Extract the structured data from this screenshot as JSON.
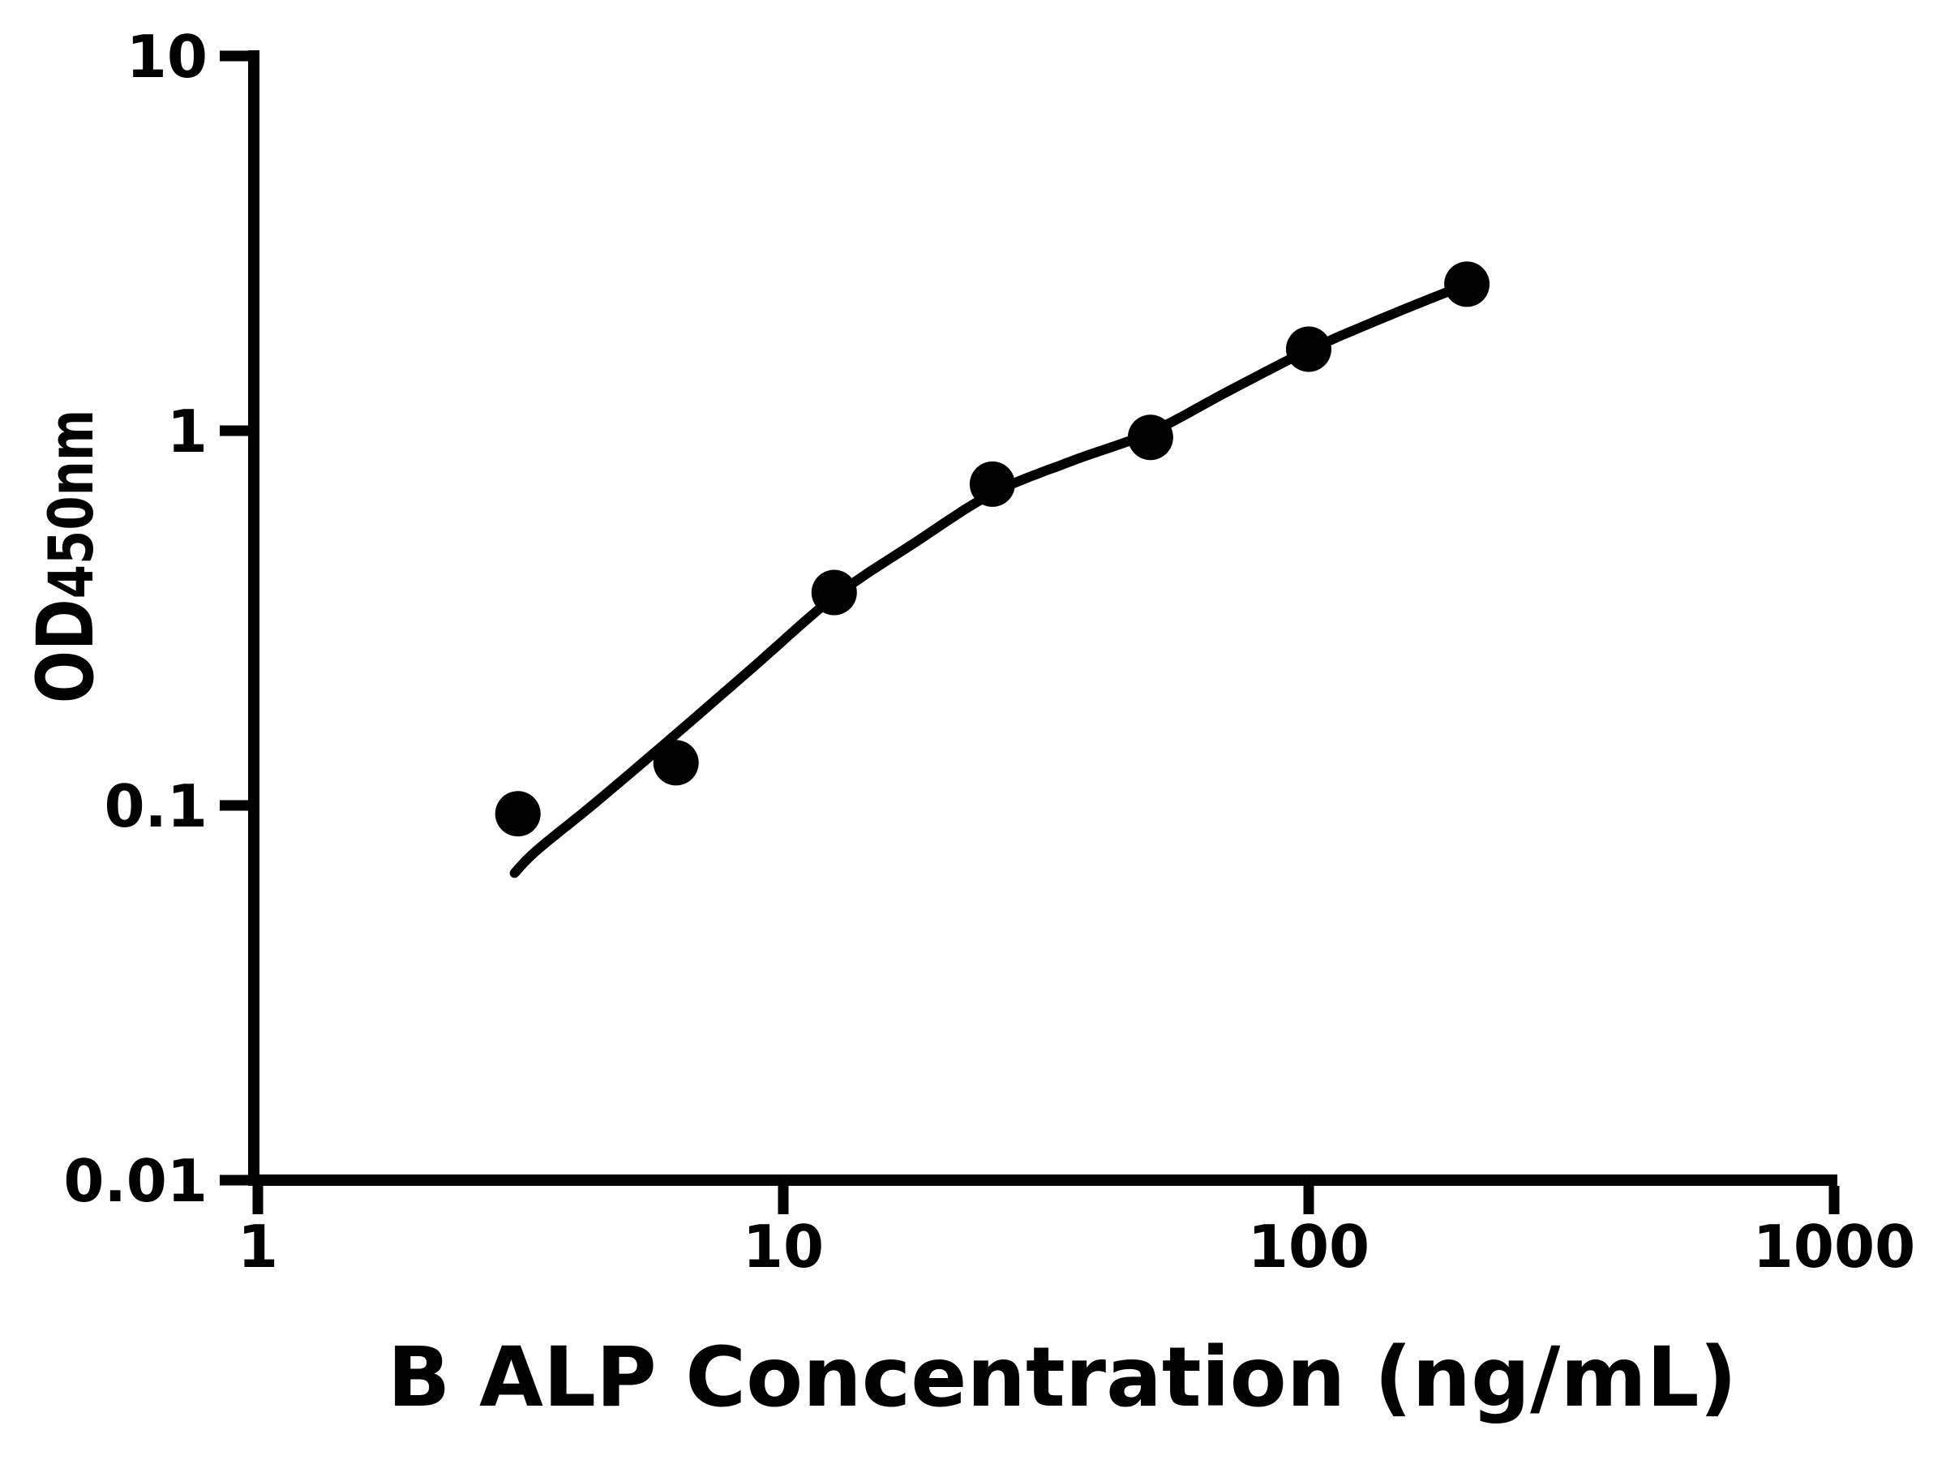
{
  "figure": {
    "background_color": "#ffffff",
    "foreground_color": "#000000"
  },
  "chart_data": {
    "type": "scatter",
    "title": "",
    "xlabel": "B ALP Concentration (ng/mL)",
    "ylabel_main": "OD",
    "ylabel_sub": "450nm",
    "x_scale": "log10",
    "y_scale": "log10",
    "xlim": [
      1,
      1000
    ],
    "ylim": [
      0.01,
      10
    ],
    "grid": false,
    "legend": null,
    "marker_color": "#000000",
    "line_color": "#000000",
    "axis_color": "#000000",
    "x_ticks": [
      {
        "value": 1,
        "label": "1"
      },
      {
        "value": 10,
        "label": "10"
      },
      {
        "value": 100,
        "label": "100"
      },
      {
        "value": 1000,
        "label": "1000"
      }
    ],
    "y_ticks": [
      {
        "value": 10,
        "label": "10"
      },
      {
        "value": 1,
        "label": "1"
      },
      {
        "value": 0.1,
        "label": "0.1"
      },
      {
        "value": 0.01,
        "label": "0.01"
      }
    ],
    "points": [
      {
        "x": 3.125,
        "y": 0.095
      },
      {
        "x": 6.25,
        "y": 0.13
      },
      {
        "x": 12.5,
        "y": 0.37
      },
      {
        "x": 25,
        "y": 0.72
      },
      {
        "x": 50,
        "y": 0.96
      },
      {
        "x": 100,
        "y": 1.65
      },
      {
        "x": 200,
        "y": 2.46
      }
    ],
    "fit_curve": [
      [
        3.08,
        0.066
      ],
      [
        3.4,
        0.076
      ],
      [
        4.4,
        0.102
      ],
      [
        6.25,
        0.155
      ],
      [
        8.8,
        0.235
      ],
      [
        12.5,
        0.36
      ],
      [
        17.7,
        0.5
      ],
      [
        25,
        0.68
      ],
      [
        35.4,
        0.83
      ],
      [
        50,
        0.99
      ],
      [
        70.7,
        1.28
      ],
      [
        100,
        1.64
      ],
      [
        141,
        2.02
      ],
      [
        200,
        2.46
      ]
    ]
  }
}
